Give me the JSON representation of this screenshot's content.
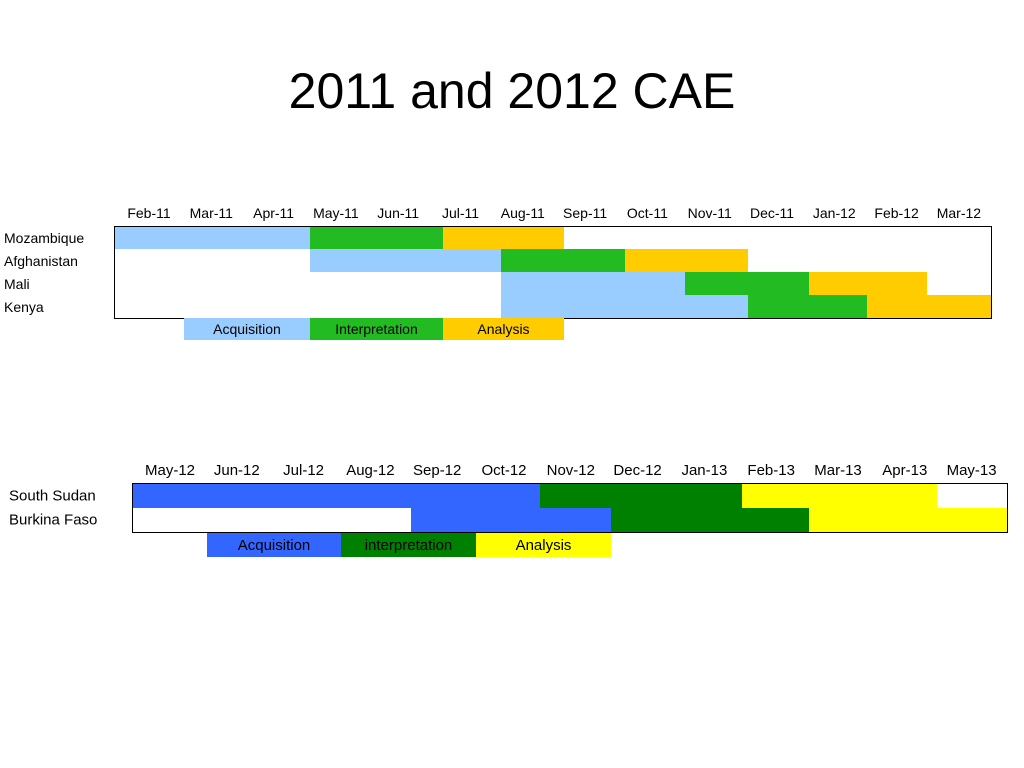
{
  "title": "2011 and 2012 CAE",
  "timeline_2011": {
    "months": [
      "Feb-11",
      "Mar-11",
      "Apr-11",
      "May-11",
      "Jun-11",
      "Jul-11",
      "Aug-11",
      "Sep-11",
      "Oct-11",
      "Nov-11",
      "Dec-11",
      "Jan-12",
      "Feb-12",
      "Mar-12"
    ],
    "rows": [
      "Mozambique",
      "Afghanistan",
      "Mali",
      "Kenya"
    ],
    "legend": [
      "Acquisition",
      "Interpretation",
      "Analysis"
    ]
  },
  "timeline_2012": {
    "months": [
      "May-12",
      "Jun-12",
      "Jul-12",
      "Aug-12",
      "Sep-12",
      "Oct-12",
      "Nov-12",
      "Dec-12",
      "Jan-13",
      "Feb-13",
      "Mar-13",
      "Apr-13",
      "May-13"
    ],
    "rows": [
      "South Sudan",
      "Burkina Faso"
    ],
    "legend": [
      "Acquisition",
      "interpretation",
      "Analysis"
    ]
  }
}
